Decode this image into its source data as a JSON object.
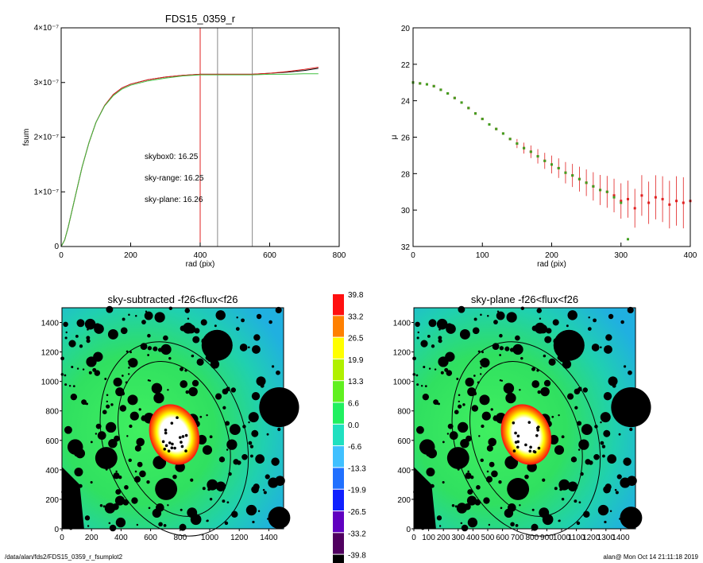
{
  "footer": {
    "path": "/data/alan/fds2/FDS15_0359_r_fsumplot2",
    "stamp": "alan@  Mon Oct 14 21:11:18 2019"
  },
  "chart_data": [
    {
      "type": "line",
      "title": "FDS15_0359_r",
      "xlabel": "rad (pix)",
      "ylabel": "fsum",
      "xlim": [
        0,
        800
      ],
      "ylim": [
        0,
        4e-07
      ],
      "x_ticks": [
        0,
        200,
        400,
        600,
        800
      ],
      "y_ticks": [
        {
          "value": 0,
          "label": "0"
        },
        {
          "value": 1e-07,
          "label": "1×10⁻⁷"
        },
        {
          "value": 2e-07,
          "label": "2×10⁻⁷"
        },
        {
          "value": 3e-07,
          "label": "3×10⁻⁷"
        },
        {
          "value": 4e-07,
          "label": "4×10⁻⁷"
        }
      ],
      "vlines": [
        {
          "x": 400,
          "color": "#e02020"
        },
        {
          "x": 450,
          "color": "#888888"
        },
        {
          "x": 550,
          "color": "#888888"
        }
      ],
      "series": [
        {
          "color": "#000000",
          "x": [
            0,
            10,
            20,
            40,
            60,
            80,
            100,
            125,
            150,
            175,
            200,
            250,
            300,
            350,
            400,
            450,
            500,
            550,
            600,
            650,
            700,
            740
          ],
          "y": [
            0,
            1.2e-08,
            3.5e-08,
            9e-08,
            1.45e-07,
            1.9e-07,
            2.27e-07,
            2.58e-07,
            2.78e-07,
            2.9e-07,
            2.97e-07,
            3.05e-07,
            3.1e-07,
            3.13e-07,
            3.15e-07,
            3.15e-07,
            3.15e-07,
            3.15e-07,
            3.17e-07,
            3.19e-07,
            3.22e-07,
            3.26e-07
          ]
        },
        {
          "color": "#e02020",
          "x": [
            0,
            10,
            20,
            40,
            60,
            80,
            100,
            125,
            150,
            175,
            200,
            250,
            300,
            350,
            400,
            450,
            500,
            550,
            600,
            650,
            700,
            740
          ],
          "y": [
            0,
            1.2e-08,
            3.5e-08,
            9e-08,
            1.45e-07,
            1.9e-07,
            2.27e-07,
            2.58e-07,
            2.78e-07,
            2.9e-07,
            2.97e-07,
            3.05e-07,
            3.1e-07,
            3.13e-07,
            3.15e-07,
            3.15e-07,
            3.15e-07,
            3.15e-07,
            3.17e-07,
            3.2e-07,
            3.24e-07,
            3.28e-07
          ]
        },
        {
          "color": "#40c040",
          "x": [
            0,
            10,
            20,
            40,
            60,
            80,
            100,
            125,
            150,
            175,
            200,
            250,
            300,
            350,
            400,
            450,
            500,
            550,
            600,
            650,
            700,
            740
          ],
          "y": [
            0,
            1.2e-08,
            3.5e-08,
            9e-08,
            1.45e-07,
            1.9e-07,
            2.27e-07,
            2.57e-07,
            2.76e-07,
            2.88e-07,
            2.95e-07,
            3.03e-07,
            3.08e-07,
            3.12e-07,
            3.14e-07,
            3.14e-07,
            3.14e-07,
            3.14e-07,
            3.15e-07,
            3.15e-07,
            3.16e-07,
            3.16e-07
          ]
        }
      ],
      "annotations": [
        {
          "text": "skybox0: 16.25",
          "color": "#000000"
        },
        {
          "text": "sky-range: 16.25",
          "color": "#e02020"
        },
        {
          "text": "sky-plane: 16.26",
          "color": "#40c040"
        }
      ]
    },
    {
      "type": "scatter",
      "title": "",
      "xlabel": "rad (pix)",
      "ylabel": "μ",
      "xlim": [
        0,
        400
      ],
      "ylim": [
        32,
        20
      ],
      "x_ticks": [
        0,
        100,
        200,
        300,
        400
      ],
      "y_ticks": [
        20,
        22,
        24,
        26,
        28,
        30,
        32
      ],
      "series": [
        {
          "color": "#e02020",
          "x": [
            0,
            10,
            20,
            30,
            40,
            50,
            60,
            70,
            80,
            90,
            100,
            110,
            120,
            130,
            140,
            150,
            160,
            170,
            180,
            190,
            200,
            210,
            220,
            230,
            240,
            250,
            260,
            270,
            280,
            290,
            300,
            310,
            320,
            330,
            340,
            350,
            360,
            370,
            380,
            390,
            400
          ],
          "y": [
            23.0,
            23.05,
            23.1,
            23.2,
            23.4,
            23.6,
            23.85,
            24.1,
            24.4,
            24.7,
            25.0,
            25.3,
            25.55,
            25.8,
            26.1,
            26.35,
            26.6,
            26.8,
            27.05,
            27.3,
            27.5,
            27.7,
            27.95,
            28.1,
            28.3,
            28.5,
            28.7,
            28.9,
            29.0,
            29.2,
            29.5,
            29.4,
            29.9,
            29.2,
            29.6,
            29.3,
            29.4,
            29.7,
            29.5,
            29.6,
            29.5
          ]
        },
        {
          "color": "#40a020",
          "x": [
            0,
            10,
            20,
            30,
            40,
            50,
            60,
            70,
            80,
            90,
            100,
            110,
            120,
            130,
            140,
            150,
            160,
            170,
            180,
            190,
            200,
            210,
            220,
            230,
            240,
            250,
            260,
            270,
            280,
            290,
            300,
            310
          ],
          "y": [
            23.0,
            23.05,
            23.1,
            23.2,
            23.4,
            23.6,
            23.85,
            24.1,
            24.4,
            24.7,
            25.0,
            25.3,
            25.55,
            25.8,
            26.1,
            26.35,
            26.6,
            26.8,
            27.05,
            27.3,
            27.5,
            27.7,
            27.95,
            28.1,
            28.3,
            28.5,
            28.7,
            28.9,
            29.0,
            29.3,
            29.6,
            31.6
          ]
        }
      ]
    },
    {
      "type": "heatmap",
      "title": "sky-subtracted -f26<flux<f26",
      "xlim": [
        0,
        1500
      ],
      "ylim": [
        0,
        1500
      ],
      "x_ticks": [
        0,
        200,
        400,
        600,
        800,
        1000,
        1200,
        1400
      ],
      "y_ticks": [
        0,
        200,
        400,
        600,
        800,
        1000,
        1200,
        1400
      ]
    },
    {
      "type": "heatmap",
      "title": "sky-plane -f26<flux<f26",
      "xlim": [
        0,
        1500
      ],
      "ylim": [
        0,
        1500
      ],
      "x_ticks": [
        0,
        100,
        200,
        300,
        400,
        500,
        600,
        700,
        800,
        900,
        1000,
        1100,
        1200,
        1300,
        1400
      ],
      "y_ticks": [
        0,
        200,
        400,
        600,
        800,
        1000,
        1200,
        1400
      ]
    },
    {
      "type": "colorbar",
      "labels": [
        "39.8",
        "33.2",
        "26.5",
        "19.9",
        "13.3",
        "6.6",
        "0.0",
        "-6.6",
        "-13.3",
        "-19.9",
        "-26.5",
        "-33.2",
        "-39.8"
      ],
      "colors": [
        "#ff1010",
        "#ff8000",
        "#ffff00",
        "#b0f000",
        "#60f020",
        "#20f060",
        "#20e0c0",
        "#40c0ff",
        "#2070ff",
        "#1020ff",
        "#6000c0",
        "#500060",
        "#000000"
      ]
    }
  ]
}
